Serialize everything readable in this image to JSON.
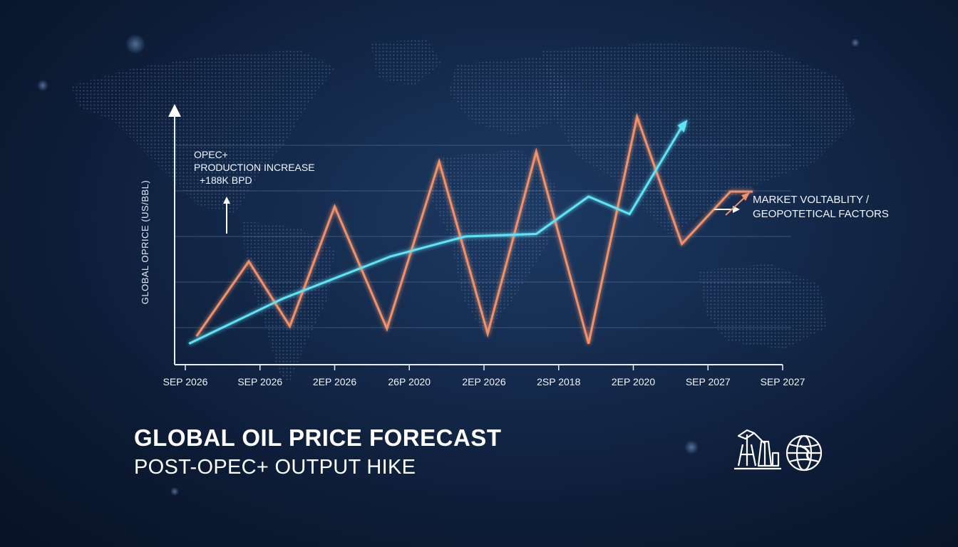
{
  "chart_data": {
    "type": "line",
    "title": "GLOBAL OIL PRICE FORECAST",
    "subtitle": "POST-OPEC+ OUTPUT HIKE",
    "ylabel": "GLOBAL OPRICE (US/BBL)",
    "xlabel": "",
    "x_tick_labels": [
      "SEP 2026",
      "SEP 2026",
      "2EP 2026",
      "26P 2020",
      "2EP 2026",
      "2SP 2018",
      "2EP 2020",
      "SEP 2027",
      "SEP 2027"
    ],
    "x_range": [
      0,
      8
    ],
    "y_range": [
      0,
      100
    ],
    "grid": true,
    "series": [
      {
        "color": "#f0916a",
        "x": [
          0.15,
          0.85,
          1.4,
          2.0,
          2.7,
          3.4,
          4.05,
          4.7,
          5.4,
          6.05,
          6.65,
          7.3,
          7.6
        ],
        "y": [
          8,
          38,
          12,
          60,
          11,
          78,
          9,
          82,
          5,
          96,
          45,
          66,
          66
        ]
      },
      {
        "color": "#5fe4f5",
        "x": [
          0.05,
          1.3,
          2.75,
          3.75,
          4.7,
          5.4,
          5.95,
          6.65
        ],
        "y": [
          5,
          23,
          40,
          48,
          49,
          64,
          57,
          92
        ]
      }
    ],
    "annotations": {
      "opec": [
        "OPEC+",
        "PRODUCTION INCREASE",
        "+188K BPD"
      ],
      "market": [
        "MARKET VOLTABLITY /",
        "GEOPOTETICAL FACTORS"
      ]
    }
  },
  "icons": [
    "oil-pump-icon",
    "globe-icon"
  ],
  "colors": {
    "price_line": "#f0916a",
    "trend_line": "#5fe4f5",
    "background": "#0c1a33"
  }
}
